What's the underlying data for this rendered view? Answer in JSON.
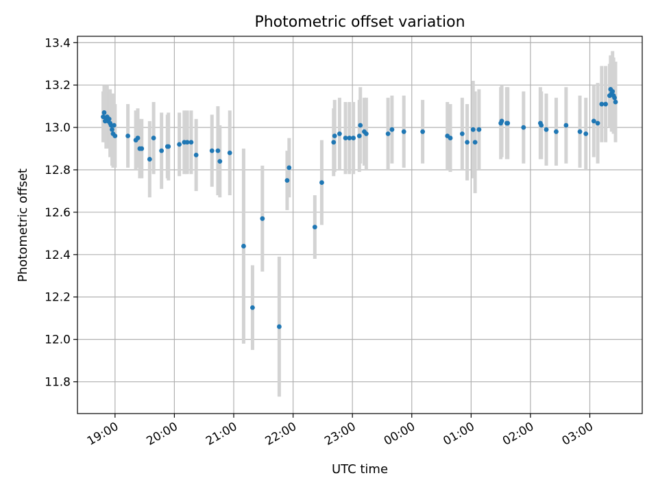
{
  "chart_data": {
    "type": "scatter",
    "title": "Photometric offset variation",
    "xlabel": "UTC time",
    "ylabel": "Photometric offset",
    "x_unit": "UTC time (HH:MM, spanning midnight)",
    "xlim": [
      "18:22",
      "03:53"
    ],
    "ylim": [
      11.65,
      13.43
    ],
    "grid": true,
    "x_ticks": [
      "19:00",
      "20:00",
      "21:00",
      "22:00",
      "23:00",
      "00:00",
      "01:00",
      "02:00",
      "03:00"
    ],
    "y_ticks": [
      "11.8",
      "12.0",
      "12.2",
      "12.4",
      "12.6",
      "12.8",
      "13.0",
      "13.2",
      "13.4"
    ],
    "colors": {
      "point": "#1f77b4",
      "errorbar": "#d3d3d3"
    },
    "series": [
      {
        "x": [
          "18:48",
          "18:49",
          "18:50",
          "18:51",
          "18:52",
          "18:53",
          "18:54",
          "18:55",
          "18:56",
          "18:57",
          "18:58",
          "18:59",
          "19:00",
          "19:13",
          "19:21",
          "19:23",
          "19:25",
          "19:27",
          "19:35",
          "19:39",
          "19:47",
          "19:53",
          "19:54",
          "20:05",
          "20:10",
          "20:13",
          "20:17",
          "20:22",
          "20:38",
          "20:44",
          "20:46",
          "20:56",
          "21:10",
          "21:19",
          "21:29",
          "21:46",
          "21:54",
          "21:56",
          "22:22",
          "22:29",
          "22:41",
          "22:42",
          "22:47",
          "22:53",
          "22:57",
          "23:01",
          "23:07",
          "23:08",
          "23:12",
          "23:14",
          "23:36",
          "23:40",
          "23:52",
          "00:11",
          "00:36",
          "00:39",
          "00:51",
          "00:56",
          "01:02",
          "01:04",
          "01:08",
          "01:30",
          "01:31",
          "01:36",
          "01:37",
          "01:53",
          "02:10",
          "02:11",
          "02:16",
          "02:26",
          "02:36",
          "02:50",
          "02:56",
          "03:04",
          "03:08",
          "03:12",
          "03:16",
          "03:20",
          "03:21",
          "03:22",
          "03:23",
          "03:24",
          "03:25",
          "03:26"
        ],
        "y": [
          13.05,
          13.07,
          13.03,
          13.04,
          13.05,
          13.03,
          13.04,
          13.02,
          13.01,
          12.99,
          12.97,
          13.01,
          12.96,
          12.96,
          12.94,
          12.95,
          12.9,
          12.9,
          12.85,
          12.95,
          12.89,
          12.91,
          12.91,
          12.92,
          12.93,
          12.93,
          12.93,
          12.87,
          12.89,
          12.89,
          12.84,
          12.88,
          12.44,
          12.15,
          12.57,
          12.06,
          12.75,
          12.81,
          12.53,
          12.74,
          12.93,
          12.96,
          12.97,
          12.95,
          12.95,
          12.95,
          12.96,
          13.01,
          12.98,
          12.97,
          12.97,
          12.99,
          12.98,
          12.98,
          12.96,
          12.95,
          12.97,
          12.93,
          12.99,
          12.93,
          12.99,
          13.02,
          13.03,
          13.02,
          13.02,
          13.0,
          13.02,
          13.01,
          12.99,
          12.98,
          13.01,
          12.98,
          12.97,
          13.03,
          13.02,
          13.11,
          13.11,
          13.15,
          13.18,
          13.16,
          13.17,
          13.15,
          13.14,
          13.12
        ],
        "yerr": [
          0.12,
          0.13,
          0.1,
          0.14,
          0.15,
          0.11,
          0.13,
          0.16,
          0.15,
          0.17,
          0.16,
          0.15,
          0.15,
          0.15,
          0.14,
          0.14,
          0.14,
          0.14,
          0.18,
          0.17,
          0.18,
          0.15,
          0.16,
          0.15,
          0.15,
          0.15,
          0.15,
          0.17,
          0.17,
          0.21,
          0.17,
          0.2,
          0.46,
          0.2,
          0.25,
          0.33,
          0.14,
          0.14,
          0.15,
          0.2,
          0.16,
          0.17,
          0.17,
          0.17,
          0.17,
          0.17,
          0.17,
          0.18,
          0.16,
          0.17,
          0.17,
          0.16,
          0.17,
          0.15,
          0.16,
          0.16,
          0.17,
          0.18,
          0.23,
          0.24,
          0.19,
          0.17,
          0.17,
          0.17,
          0.17,
          0.17,
          0.17,
          0.16,
          0.17,
          0.16,
          0.18,
          0.17,
          0.17,
          0.17,
          0.19,
          0.18,
          0.18,
          0.15,
          0.16,
          0.18,
          0.19,
          0.18,
          0.17,
          0.19
        ]
      }
    ]
  }
}
